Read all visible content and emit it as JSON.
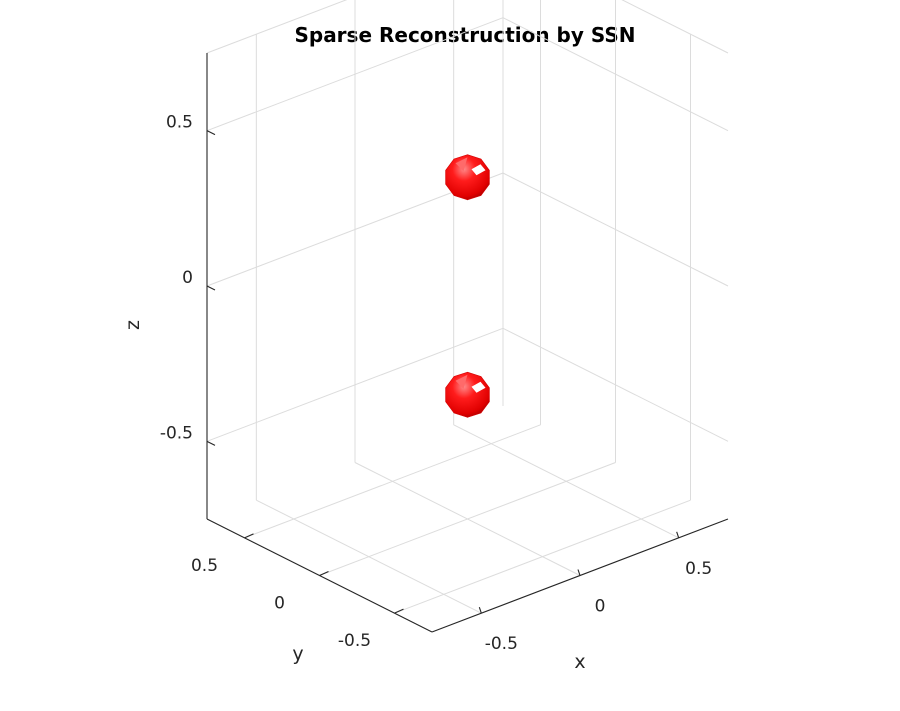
{
  "figure": {
    "title": "Sparse Reconstruction by SSN"
  },
  "chart_data": {
    "type": "scatter",
    "projection": "3d",
    "title": "Sparse Reconstruction by SSN",
    "xlabel": "x",
    "ylabel": "y",
    "zlabel": "z",
    "xlim": [
      -0.75,
      0.75
    ],
    "ylim": [
      -0.75,
      0.75
    ],
    "zlim": [
      -0.75,
      0.75
    ],
    "xticks": [
      -0.5,
      0,
      0.5
    ],
    "yticks": [
      -0.5,
      0,
      0.5
    ],
    "zticks": [
      -0.5,
      0,
      0.5
    ],
    "xtick_labels": [
      "-0.5",
      "0",
      "0.5"
    ],
    "ytick_labels": [
      "-0.5",
      "0",
      "0.5"
    ],
    "ztick_labels": [
      "-0.5",
      "0",
      "0.5"
    ],
    "grid": true,
    "marker": "sphere",
    "marker_color": "#ff0000",
    "points": [
      {
        "x": 0.0,
        "y": 0.0,
        "z": 0.35
      },
      {
        "x": 0.0,
        "y": 0.0,
        "z": -0.35
      }
    ]
  }
}
